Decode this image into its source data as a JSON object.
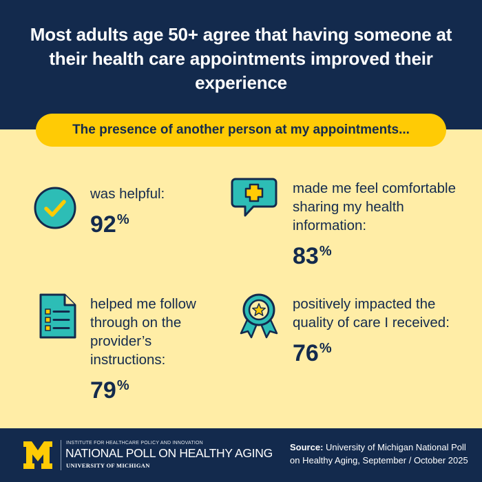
{
  "header": {
    "title": "Most adults age 50+ agree that having someone at their health care appointments improved their experience",
    "banner": "The presence of another person at my appointments..."
  },
  "stats": [
    {
      "label": "was helpful:",
      "value": "92",
      "unit": "%",
      "icon": "checkmark-circle-icon"
    },
    {
      "label": "made me feel comfortable sharing my health information:",
      "value": "83",
      "unit": "%",
      "icon": "chat-bubble-plus-icon"
    },
    {
      "label": "helped me follow through on the provider’s instructions:",
      "value": "79",
      "unit": "%",
      "icon": "document-checklist-icon"
    },
    {
      "label": "positively impacted the quality of care I received:",
      "value": "76",
      "unit": "%",
      "icon": "award-ribbon-star-icon"
    }
  ],
  "footer": {
    "logo_letter": "M",
    "institute": "INSTITUTE FOR HEALTHCARE POLICY AND INNOVATION",
    "poll_name": "NATIONAL POLL ON HEALTHY AGING",
    "university": "UNIVERSITY OF MICHIGAN",
    "source_label": "Source:",
    "source_text": "University of Michigan National Poll on Healthy Aging, September / October 2025"
  },
  "colors": {
    "navy": "#132A4D",
    "maize": "#FFCB05",
    "cream": "#FFEDA6",
    "teal": "#2DBDB6"
  }
}
